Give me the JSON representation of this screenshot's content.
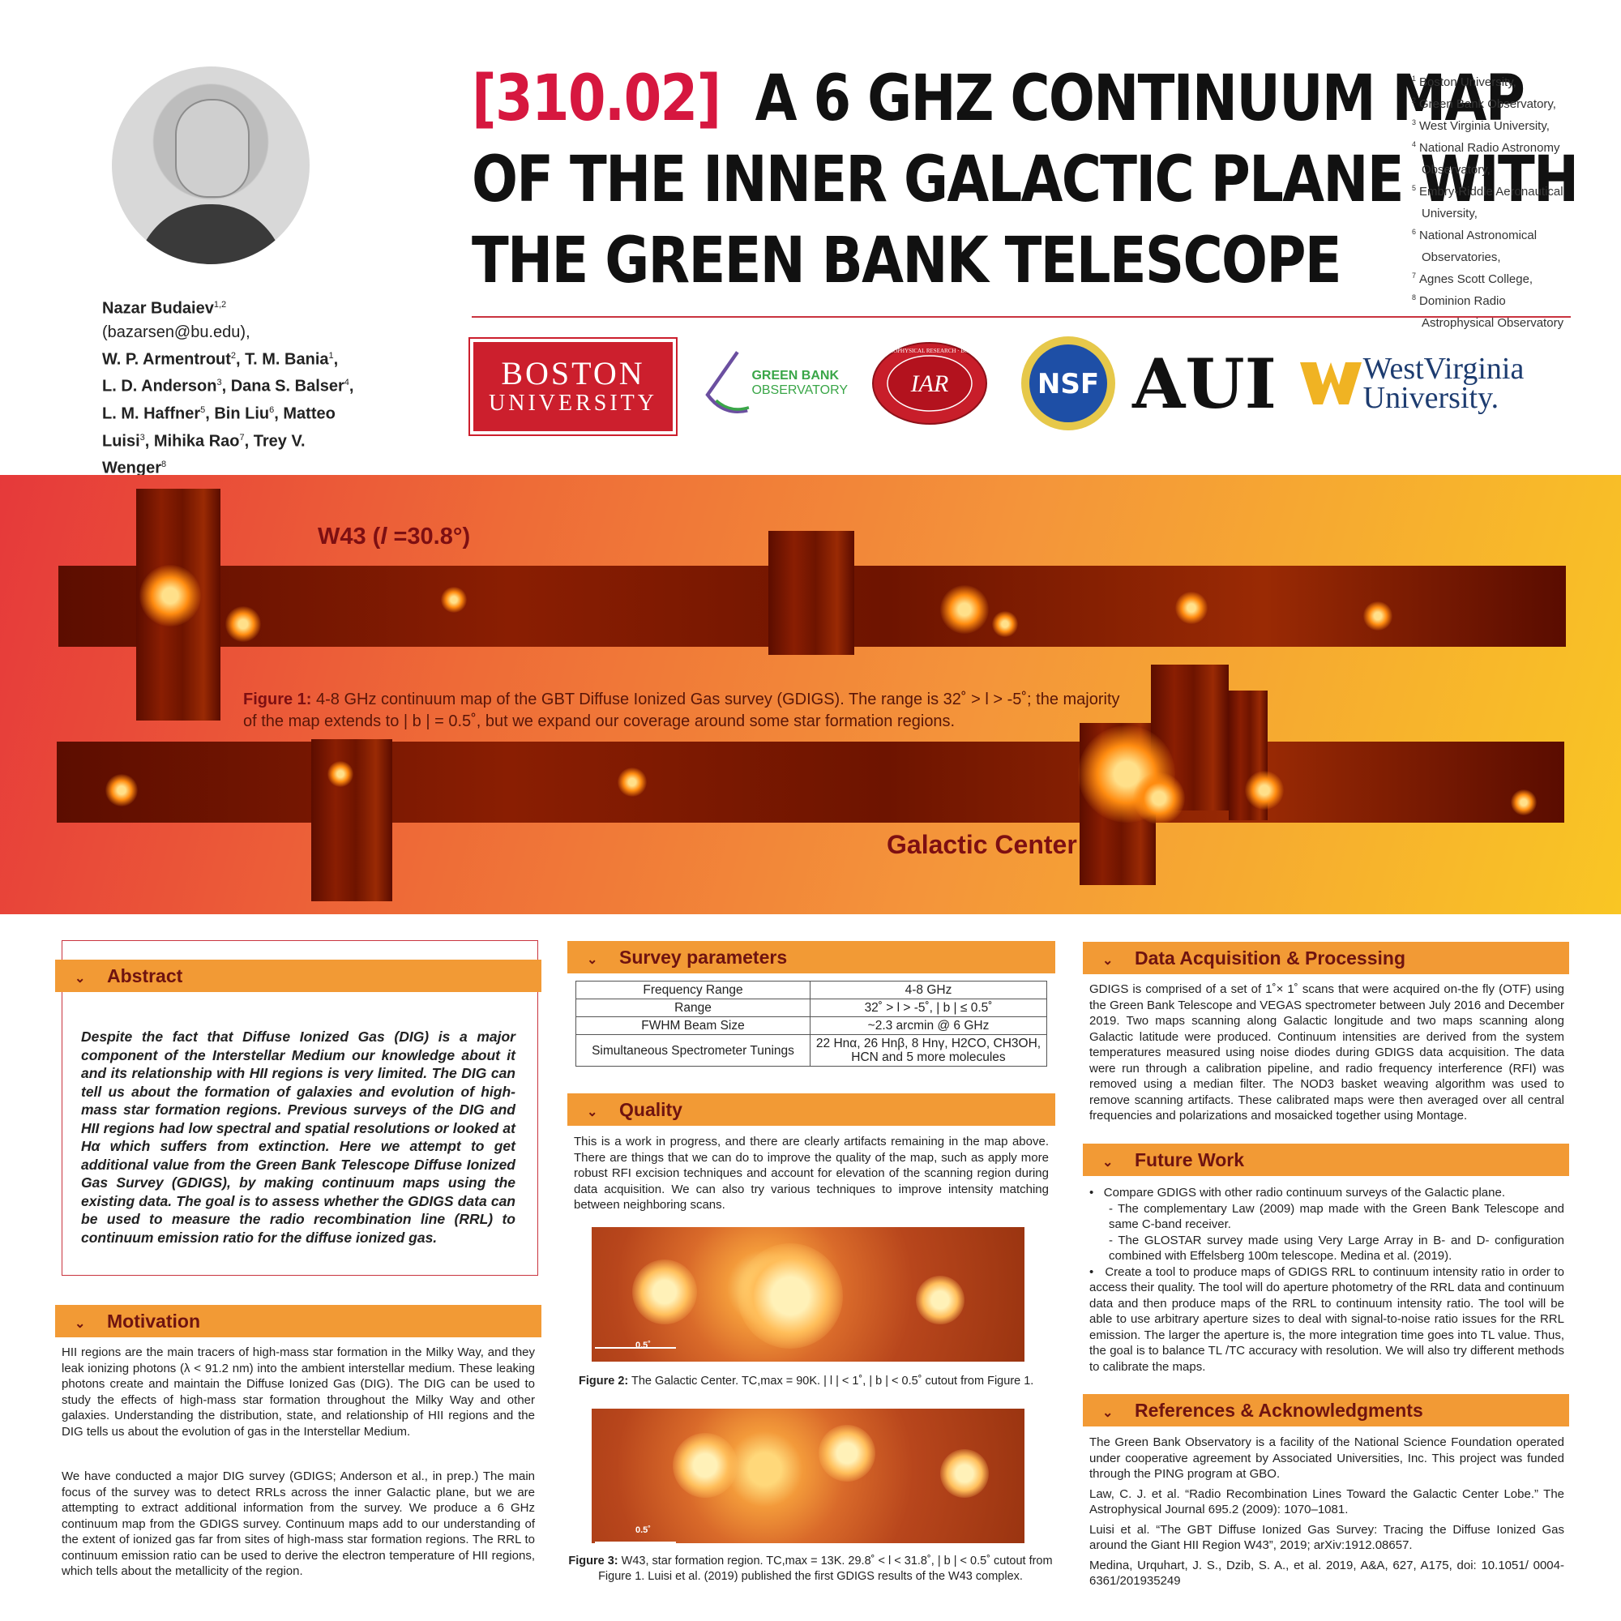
{
  "header": {
    "title_code": "[310.02]",
    "title_line1": "A 6 GHZ CONTINUUM MAP",
    "title_line2": "OF THE INNER GALACTIC PLANE WITH",
    "title_line3": "THE GREEN BANK TELESCOPE",
    "authors": {
      "a1": "Nazar Budaiev",
      "a1_sup": "1,2",
      "a1_email": " (bazarsen@bu.edu),",
      "a2": "W. P. Armentrout",
      "a2_sup": "2",
      "a3": ", T. M. Bania",
      "a3_sup": "1",
      "sep3": ",",
      "a4": "L. D. Anderson",
      "a4_sup": "3",
      "a5": ", Dana S. Balser",
      "a5_sup": "4",
      "sep5": ",",
      "a6": "L. M. Haffner",
      "a6_sup": "5",
      "a7": ", Bin Liu",
      "a7_sup": "6",
      "a8": ", Matteo",
      "a9": "Luisi",
      "a9_sup": "3",
      "a10": ", Mihika Rao",
      "a10_sup": "7",
      "a11": ", Trey V. Wenger",
      "a11_sup": "8"
    },
    "affiliations": [
      {
        "sup": "1",
        "text": "Boston University,"
      },
      {
        "sup": "2",
        "text": "Green Bank Observatory,"
      },
      {
        "sup": "3",
        "text": "West Virginia University,"
      },
      {
        "sup": "4",
        "text": "National Radio Astronomy"
      },
      {
        "sup": "",
        "text": "Observatory,"
      },
      {
        "sup": "5",
        "text": "Embry-Riddle Aeronautical"
      },
      {
        "sup": "",
        "text": "University,"
      },
      {
        "sup": "6",
        "text": "National Astronomical"
      },
      {
        "sup": "",
        "text": "Observatories,"
      },
      {
        "sup": "7",
        "text": "Agnes Scott College,"
      },
      {
        "sup": "8",
        "text": "Dominion Radio"
      },
      {
        "sup": "",
        "text": "Astrophysical Observatory"
      }
    ],
    "logos": {
      "bu_line1": "BOSTON",
      "bu_line2": "UNIVERSITY",
      "gbo_line1": "GREEN BANK",
      "gbo_line2": "OBSERVATORY",
      "iar": "IAR",
      "iar_ring": "INSTITUTE for ASTROPHYSICAL RESEARCH · BOSTON UNIVERSITY",
      "nsf": "NSF",
      "aui": "AUI",
      "wvu_line1": "WestVirginia",
      "wvu_line2": "University."
    }
  },
  "banner": {
    "w43_label_prefix": "W43 (",
    "w43_label_l": "l",
    "w43_label_suffix": " =30.8°)",
    "figure1_label": "Figure 1:",
    "figure1_text": " 4-8 GHz continuum map of the GBT Diffuse Ionized Gas survey (GDIGS). The range is 32˚ > l > -5˚; the majority of the map extends to | b | = 0.5˚, but we expand our coverage around some star formation regions.",
    "gc_label": "Galactic Center"
  },
  "abstract": {
    "heading": "Abstract",
    "text": "Despite the fact that Diffuse Ionized Gas (DIG) is a major component of the Interstellar Medium our knowledge about it and its relationship with HII regions is very limited. The DIG can tell us about the formation of galaxies and evolution of high-mass star formation regions. Previous surveys of the DIG and HII regions had low spectral and spatial resolutions or looked at Hα which suffers from extinction. Here we attempt to get additional value from the Green Bank Telescope Diffuse Ionized Gas Survey (GDIGS), by making continuum maps using the existing data. The goal is to assess whether the GDIGS data can be used to measure the radio recombination line (RRL) to continuum emission ratio for the diffuse ionized gas."
  },
  "motivation": {
    "heading": "Motivation",
    "p1": "HII regions are the main tracers of high-mass star formation in the Milky Way, and they leak ionizing photons (λ < 91.2 nm) into the ambient interstellar medium. These leaking photons create and maintain the Diffuse Ionized Gas (DIG). The DIG can be used to study the effects of high-mass star formation throughout the Milky Way and other galaxies. Understanding the distribution, state, and relationship of HII regions and the DIG tells us about the evolution of gas in the Interstellar Medium.",
    "p2": "We have conducted a major DIG survey (GDIGS; Anderson et al., in prep.) The main focus of the survey was to detect RRLs across the inner Galactic plane, but we are attempting to extract additional information from the survey. We produce a 6 GHz continuum map from the GDIGS survey. Continuum maps add to our understanding of the extent of ionized gas far from sites of high-mass star formation regions. The RRL to continuum emission ratio can be used to derive the electron temperature of HII regions, which tells about the metallicity of the region."
  },
  "survey": {
    "heading": "Survey parameters",
    "rows": [
      {
        "k": "Frequency Range",
        "v": "4-8 GHz"
      },
      {
        "k": "Range",
        "v": "32˚ > l > -5˚, | b | ≤ 0.5˚"
      },
      {
        "k": "FWHM Beam Size",
        "v": "~2.3 arcmin @ 6 GHz"
      },
      {
        "k": "Simultaneous Spectrometer Tunings",
        "v": "22 Hnα, 26 Hnβ, 8 Hnγ, H2CO, CH3OH, HCN and 5 more molecules"
      }
    ]
  },
  "quality": {
    "heading": "Quality",
    "text": "This is a work in progress, and there are clearly artifacts remaining in the map above. There are things that we can do to improve the quality of the map, such as apply more robust RFI excision techniques and account for elevation of the scanning region during data acquisition. We can also try various techniques to improve intensity matching between neighboring scans.",
    "scale_label": "0.5˚",
    "fig2_label": "Figure 2:",
    "fig2_text": " The Galactic Center. TC,max = 90K. | l | < 1˚, | b | < 0.5˚ cutout from Figure 1.",
    "fig3_label": "Figure 3:",
    "fig3_text": " W43, star formation region. TC,max = 13K. 29.8˚ < l < 31.8˚, | b | < 0.5˚ cutout from Figure 1. Luisi et al. (2019) published the first GDIGS results of the W43 complex."
  },
  "data_acq": {
    "heading": "Data Acquisition & Processing",
    "text": "GDIGS is comprised of a set of 1˚× 1˚ scans that were acquired on-the fly (OTF) using the Green Bank Telescope and VEGAS spectrometer between July 2016 and December 2019. Two maps scanning along Galactic longitude and two maps scanning along Galactic latitude were produced. Continuum intensities are derived from the system temperatures measured using noise diodes during GDIGS data acquisition. The data were run through a calibration pipeline, and radio frequency interference (RFI) was removed using a median filter. The NOD3 basket weaving algorithm was used to remove scanning artifacts. These calibrated maps were then averaged over all central frequencies and polarizations and mosaicked together using Montage."
  },
  "future": {
    "heading": "Future Work",
    "b1": "Compare GDIGS with other radio continuum surveys of the Galactic plane.",
    "b1a": "- The complementary Law (2009) map made with the Green Bank Telescope and same C-band receiver.",
    "b1b": "- The GLOSTAR survey made using Very Large Array in B- and D- configuration combined with Effelsberg 100m telescope. Medina et al. (2019).",
    "b2": "Create a tool to produce maps of GDIGS RRL to continuum intensity ratio in order to access their quality. The tool will do aperture photometry of the RRL data and continuum data and then produce maps of the RRL to continuum intensity ratio. The tool will be able to use arbitrary aperture sizes to deal with signal-to-noise ratio issues for the RRL emission. The larger the aperture is, the more integration time goes into TL value. Thus, the goal is to balance TL /TC accuracy with resolution. We will also try different methods to calibrate the maps."
  },
  "refs": {
    "heading": "References & Acknowledgments",
    "ack": "The Green Bank Observatory is a facility of the National Science Foundation operated under cooperative agreement by Associated Universities, Inc. This project was funded through the PING program at GBO.",
    "r1": "Law, C. J. et al. “Radio Recombination Lines Toward the Galactic Center Lobe.” The Astrophysical Journal 695.2 (2009): 1070–1081.",
    "r2": "Luisi et al. “The GBT Diffuse Ionized Gas Survey: Tracing the Diffuse Ionized Gas around the Giant HII Region W43”, 2019; arXiv:1912.08657.",
    "r3": "Medina, Urquhart, J. S., Dzib, S. A., et al. 2019, A&A, 627, A175, doi: 10.1051/ 0004-6361/201935249"
  },
  "icons": {
    "section_chevron": "chevron-down-icon"
  },
  "colors": {
    "accent": "#d6173f",
    "section_bar": "#f29a35",
    "section_text": "#6f1310"
  }
}
